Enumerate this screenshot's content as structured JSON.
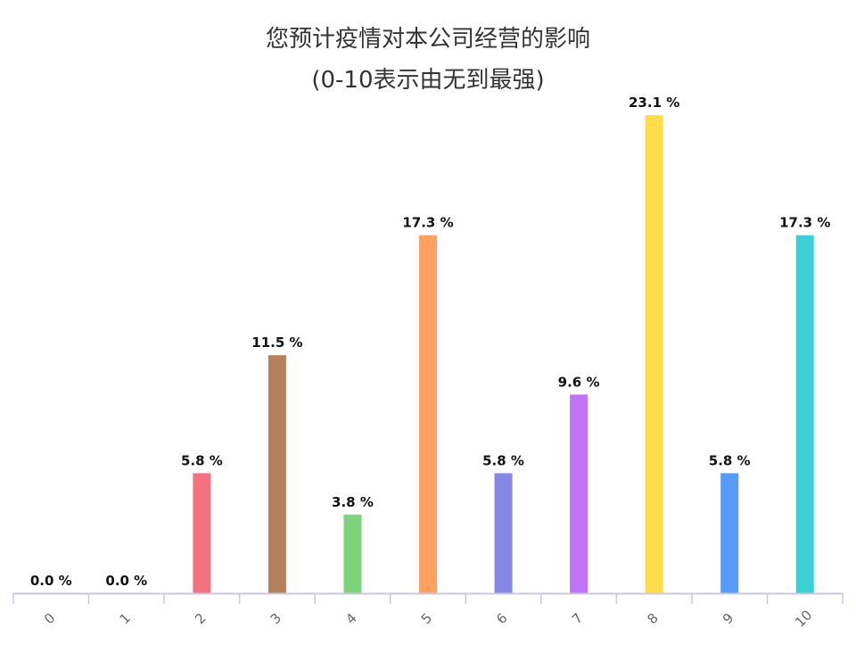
{
  "chart_data": {
    "type": "bar",
    "title_line1": "您预计疫情对本公司经营的影响",
    "title_line2": "(0-10表示由无到最强)",
    "xlabel": "",
    "ylabel": "",
    "ylim": [
      0,
      25
    ],
    "grid": false,
    "legend": "none",
    "unit_suffix": " %",
    "categories": [
      "0",
      "1",
      "2",
      "3",
      "4",
      "5",
      "6",
      "7",
      "8",
      "9",
      "10"
    ],
    "values": [
      0.0,
      0.0,
      5.8,
      11.5,
      3.8,
      17.3,
      5.8,
      9.6,
      23.1,
      5.8,
      17.3
    ],
    "colors": [
      "#f4717f",
      "#f4717f",
      "#f4717f",
      "#b5815d",
      "#7ed47a",
      "#fea05f",
      "#8489e6",
      "#c172f6",
      "#fedd48",
      "#569bf7",
      "#3ad1d6"
    ],
    "axis_color": "#c8c8e0"
  }
}
